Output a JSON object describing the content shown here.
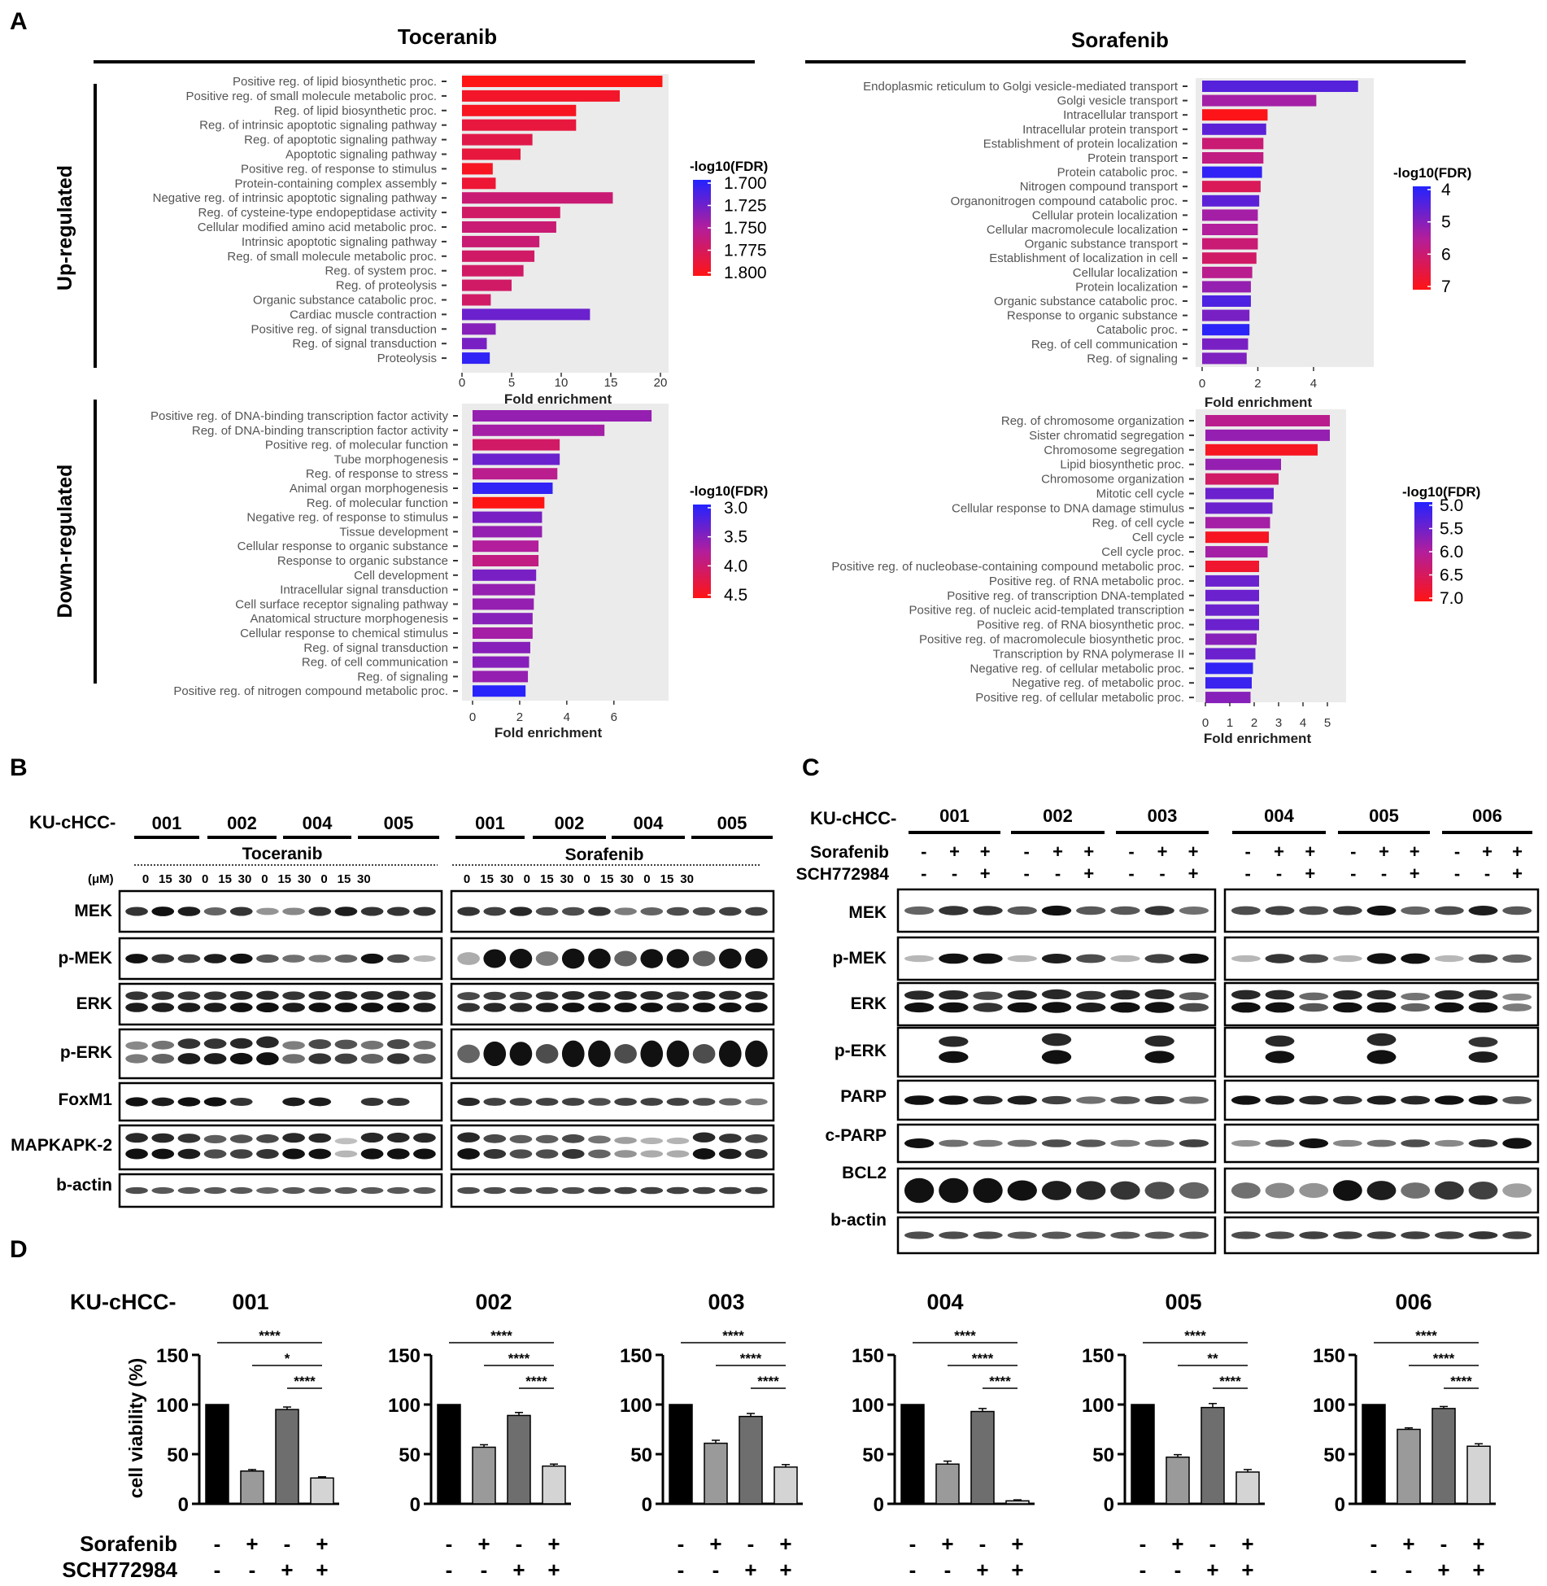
{
  "panels": {
    "a": "A",
    "b": "B",
    "c": "C",
    "d": "D"
  },
  "colors": {
    "high": "#ff1414",
    "mid": "#b21e9c",
    "low": "#2323ff"
  },
  "go": {
    "toceranib_title": "Toceranib",
    "sorafenib_title": "Sorafenib",
    "up_label": "Up-regulated",
    "down_label": "Down-regulated",
    "axis_title": "Fold enrichment",
    "legend_title": "-log10(FDR)",
    "charts": [
      {
        "id": "toc-up",
        "xmax": 20,
        "ticks": [
          0,
          5,
          10,
          15,
          20
        ],
        "legend_ticks": [
          "1.700",
          "1.725",
          "1.750",
          "1.775",
          "1.800"
        ],
        "terms": [
          {
            "label": "Positive reg. of lipid biosynthetic proc.",
            "value": 20.2,
            "c": 0.0
          },
          {
            "label": "Positive reg. of small molecule metabolic proc.",
            "value": 15.9,
            "c": 0.08
          },
          {
            "label": "Reg. of lipid biosynthetic proc.",
            "value": 11.5,
            "c": 0.05
          },
          {
            "label": "Reg. of intrinsic apoptotic signaling pathway",
            "value": 11.5,
            "c": 0.15
          },
          {
            "label": "Reg. of apoptotic signaling pathway",
            "value": 7.1,
            "c": 0.2
          },
          {
            "label": "Apoptotic signaling pathway",
            "value": 5.9,
            "c": 0.15
          },
          {
            "label": "Positive reg. of response to stimulus",
            "value": 3.1,
            "c": 0.05
          },
          {
            "label": "Protein-containing complex assembly",
            "value": 3.4,
            "c": 0.12
          },
          {
            "label": "Negative reg. of intrinsic apoptotic signaling pathway",
            "value": 15.2,
            "c": 0.35
          },
          {
            "label": "Reg. of cysteine-type endopeptidase activity",
            "value": 9.9,
            "c": 0.3
          },
          {
            "label": "Cellular modified amino acid metabolic proc.",
            "value": 9.5,
            "c": 0.35
          },
          {
            "label": "Intrinsic apoptotic signaling pathway",
            "value": 7.8,
            "c": 0.35
          },
          {
            "label": "Reg. of small molecule metabolic proc.",
            "value": 7.3,
            "c": 0.3
          },
          {
            "label": "Reg. of system proc.",
            "value": 6.2,
            "c": 0.3
          },
          {
            "label": "Reg. of proteolysis",
            "value": 5.0,
            "c": 0.3
          },
          {
            "label": "Organic substance catabolic proc.",
            "value": 2.9,
            "c": 0.3
          },
          {
            "label": "Cardiac muscle contraction",
            "value": 12.9,
            "c": 0.75
          },
          {
            "label": "Positive reg. of signal transduction",
            "value": 3.4,
            "c": 0.65
          },
          {
            "label": "Reg. of signal transduction",
            "value": 2.5,
            "c": 0.7
          },
          {
            "label": "Proteolysis",
            "value": 2.8,
            "c": 0.95
          }
        ]
      },
      {
        "id": "toc-down",
        "xmax": 7.7,
        "ticks": [
          0,
          2,
          4,
          6
        ],
        "legend_ticks": [
          "3.0",
          "3.5",
          "4.0",
          "4.5"
        ],
        "terms": [
          {
            "label": "Positive reg. of DNA-binding transcription factor activity",
            "value": 7.6,
            "c": 0.6
          },
          {
            "label": "Reg. of DNA-binding transcription factor activity",
            "value": 5.6,
            "c": 0.55
          },
          {
            "label": "Positive reg. of molecular function",
            "value": 3.7,
            "c": 0.3
          },
          {
            "label": "Tube morphogenesis",
            "value": 3.7,
            "c": 0.75
          },
          {
            "label": "Reg. of response to stress",
            "value": 3.6,
            "c": 0.45
          },
          {
            "label": "Animal organ morphogenesis",
            "value": 3.4,
            "c": 0.95
          },
          {
            "label": "Reg. of molecular function",
            "value": 3.05,
            "c": 0.0
          },
          {
            "label": "Negative reg. of response to stimulus",
            "value": 2.95,
            "c": 0.7
          },
          {
            "label": "Tissue development",
            "value": 2.95,
            "c": 0.6
          },
          {
            "label": "Cellular response to organic substance",
            "value": 2.8,
            "c": 0.5
          },
          {
            "label": "Response to organic substance",
            "value": 2.8,
            "c": 0.4
          },
          {
            "label": "Cell development",
            "value": 2.7,
            "c": 0.7
          },
          {
            "label": "Intracellular signal transduction",
            "value": 2.65,
            "c": 0.6
          },
          {
            "label": "Cell surface receptor signaling pathway",
            "value": 2.6,
            "c": 0.6
          },
          {
            "label": "Anatomical structure morphogenesis",
            "value": 2.55,
            "c": 0.65
          },
          {
            "label": "Cellular response to chemical stimulus",
            "value": 2.55,
            "c": 0.55
          },
          {
            "label": "Reg. of signal transduction",
            "value": 2.45,
            "c": 0.65
          },
          {
            "label": "Reg. of cell communication",
            "value": 2.4,
            "c": 0.65
          },
          {
            "label": "Reg. of signaling",
            "value": 2.35,
            "c": 0.6
          },
          {
            "label": "Positive reg. of nitrogen compound metabolic proc.",
            "value": 2.25,
            "c": 0.98
          }
        ]
      },
      {
        "id": "sor-up",
        "xmax": 5.9,
        "ticks": [
          0,
          2,
          4
        ],
        "legend_ticks": [
          "4",
          "5",
          "6",
          "7"
        ],
        "terms": [
          {
            "label": "Endoplasmic reticulum to Golgi vesicle-mediated transport",
            "value": 5.6,
            "c": 0.82
          },
          {
            "label": "Golgi vesicle transport",
            "value": 4.1,
            "c": 0.55
          },
          {
            "label": "Intracellular transport",
            "value": 2.35,
            "c": 0.02
          },
          {
            "label": "Intracellular protein transport",
            "value": 2.3,
            "c": 0.8
          },
          {
            "label": "Establishment of protein localization",
            "value": 2.2,
            "c": 0.35
          },
          {
            "label": "Protein transport",
            "value": 2.2,
            "c": 0.4
          },
          {
            "label": "Protein catabolic proc.",
            "value": 2.15,
            "c": 0.95
          },
          {
            "label": "Nitrogen compound transport",
            "value": 2.1,
            "c": 0.25
          },
          {
            "label": "Organonitrogen compound catabolic proc.",
            "value": 2.05,
            "c": 0.8
          },
          {
            "label": "Cellular protein localization",
            "value": 2.0,
            "c": 0.55
          },
          {
            "label": "Cellular macromolecule localization",
            "value": 2.0,
            "c": 0.5
          },
          {
            "label": "Organic substance transport",
            "value": 2.0,
            "c": 0.35
          },
          {
            "label": "Establishment of localization in cell",
            "value": 1.95,
            "c": 0.3
          },
          {
            "label": "Cellular localization",
            "value": 1.8,
            "c": 0.45
          },
          {
            "label": "Protein localization",
            "value": 1.75,
            "c": 0.6
          },
          {
            "label": "Organic substance catabolic proc.",
            "value": 1.75,
            "c": 0.85
          },
          {
            "label": "Response to organic substance",
            "value": 1.7,
            "c": 0.7
          },
          {
            "label": "Catabolic proc.",
            "value": 1.7,
            "c": 0.97
          },
          {
            "label": "Reg. of cell communication",
            "value": 1.65,
            "c": 0.7
          },
          {
            "label": "Reg. of signaling",
            "value": 1.6,
            "c": 0.68
          }
        ]
      },
      {
        "id": "sor-down",
        "xmax": 5.2,
        "ticks": [
          0,
          1,
          2,
          3,
          4,
          5
        ],
        "legend_ticks": [
          "5.0",
          "5.5",
          "6.0",
          "6.5",
          "7.0"
        ],
        "terms": [
          {
            "label": "Reg. of chromosome organization",
            "value": 5.1,
            "c": 0.45
          },
          {
            "label": "Sister chromatid segregation",
            "value": 5.1,
            "c": 0.6
          },
          {
            "label": "Chromosome segregation",
            "value": 4.6,
            "c": 0.05
          },
          {
            "label": "Lipid biosynthetic proc.",
            "value": 3.1,
            "c": 0.6
          },
          {
            "label": "Chromosome organization",
            "value": 3.0,
            "c": 0.3
          },
          {
            "label": "Mitotic cell cycle",
            "value": 2.8,
            "c": 0.75
          },
          {
            "label": "Cellular response to DNA damage stimulus",
            "value": 2.75,
            "c": 0.75
          },
          {
            "label": "Reg. of cell cycle",
            "value": 2.65,
            "c": 0.55
          },
          {
            "label": "Cell cycle",
            "value": 2.6,
            "c": 0.05
          },
          {
            "label": "Cell cycle proc.",
            "value": 2.55,
            "c": 0.55
          },
          {
            "label": "Positive reg. of nucleobase-containing compound metabolic proc.",
            "value": 2.2,
            "c": 0.1
          },
          {
            "label": "Positive reg. of RNA metabolic proc.",
            "value": 2.2,
            "c": 0.75
          },
          {
            "label": "Positive reg. of transcription DNA-templated",
            "value": 2.2,
            "c": 0.75
          },
          {
            "label": "Positive reg. of nucleic acid-templated transcription",
            "value": 2.2,
            "c": 0.75
          },
          {
            "label": "Positive reg. of RNA biosynthetic proc.",
            "value": 2.2,
            "c": 0.75
          },
          {
            "label": "Positive reg. of macromolecule biosynthetic proc.",
            "value": 2.1,
            "c": 0.65
          },
          {
            "label": "Transcription by RNA polymerase II",
            "value": 2.05,
            "c": 0.75
          },
          {
            "label": "Negative reg. of cellular metabolic proc.",
            "value": 1.95,
            "c": 0.95
          },
          {
            "label": "Negative reg. of metabolic proc.",
            "value": 1.9,
            "c": 0.92
          },
          {
            "label": "Positive reg. of cellular metabolic proc.",
            "value": 1.85,
            "c": 0.65
          }
        ]
      }
    ]
  },
  "wb_b": {
    "cell_prefix": "KU-cHCC-",
    "groups_left": [
      "001",
      "002",
      "004",
      "005"
    ],
    "groups_right": [
      "001",
      "002",
      "004",
      "005"
    ],
    "drug_left": "Toceranib",
    "drug_right": "Sorafenib",
    "unit": "(μM)",
    "concs": [
      "0",
      "15",
      "30"
    ],
    "proteins": [
      "MEK",
      "p-MEK",
      "ERK",
      "p-ERK",
      "FoxM1",
      "MAPKAPK-2",
      "b-actin"
    ]
  },
  "wb_c": {
    "cell_prefix": "KU-cHCC-",
    "groups": [
      "001",
      "002",
      "003",
      "004",
      "005",
      "006"
    ],
    "row1_label": "Sorafenib",
    "row2_label": "SCH772984",
    "row1": [
      "-",
      "+",
      "+"
    ],
    "row2": [
      "-",
      "-",
      "+"
    ],
    "proteins": [
      "MEK",
      "p-MEK",
      "ERK",
      "p-ERK",
      "PARP",
      "c-PARP",
      "BCL2",
      "b-actin"
    ]
  },
  "chart_data": {
    "type": "bar",
    "title": "KU-cHCC-",
    "ylabel": "cell viability (%)",
    "ylim": [
      0,
      150
    ],
    "yticks": [
      "0",
      "50",
      "100",
      "150"
    ],
    "row1_label": "Sorafenib",
    "row2_label": "SCH772984",
    "row1": [
      "-",
      "+",
      "-",
      "+"
    ],
    "row2": [
      "-",
      "-",
      "+",
      "+"
    ],
    "bar_colors": [
      "#000000",
      "#9a9a9a",
      "#6e6e6e",
      "#d4d4d4"
    ],
    "groups": [
      {
        "name": "001",
        "values": [
          100,
          33,
          95,
          26
        ],
        "errors": [
          0,
          1.5,
          2.5,
          1.2
        ],
        "sig": [
          "****",
          "*",
          "****"
        ]
      },
      {
        "name": "002",
        "values": [
          100,
          57,
          89,
          38
        ],
        "errors": [
          0,
          2.5,
          3,
          2
        ],
        "sig": [
          "****",
          "****",
          "****"
        ]
      },
      {
        "name": "003",
        "values": [
          100,
          61,
          88,
          37
        ],
        "errors": [
          0,
          3,
          3,
          2.5
        ],
        "sig": [
          "****",
          "****",
          "****"
        ]
      },
      {
        "name": "004",
        "values": [
          100,
          40,
          93,
          3
        ],
        "errors": [
          0,
          3,
          3,
          1
        ],
        "sig": [
          "****",
          "****",
          "****"
        ]
      },
      {
        "name": "005",
        "values": [
          100,
          47,
          97,
          32
        ],
        "errors": [
          0,
          2.5,
          4,
          2.5
        ],
        "sig": [
          "****",
          "**",
          "****"
        ]
      },
      {
        "name": "006",
        "values": [
          100,
          75,
          96,
          58
        ],
        "errors": [
          0,
          1.5,
          2,
          2.5
        ],
        "sig": [
          "****",
          "****",
          "****"
        ]
      }
    ]
  }
}
